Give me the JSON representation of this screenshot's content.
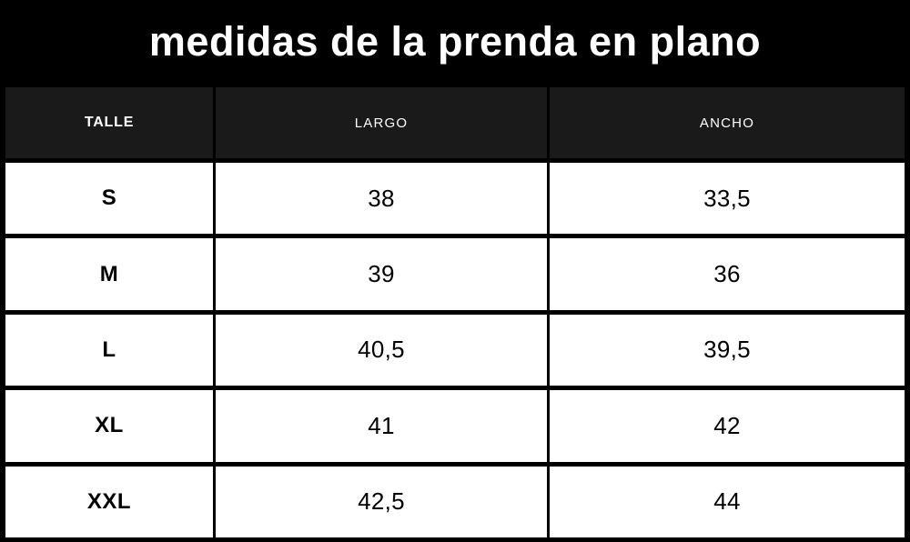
{
  "title": "medidas de la prenda en plano",
  "chart_data": {
    "type": "table",
    "title": "medidas de la prenda en plano",
    "columns": [
      "TALLE",
      "LARGO",
      "ANCHO"
    ],
    "rows": [
      [
        "S",
        "38",
        "33,5"
      ],
      [
        "M",
        "39",
        "36"
      ],
      [
        "L",
        "40,5",
        "39,5"
      ],
      [
        "XL",
        "41",
        "42"
      ],
      [
        "XXL",
        "42,5",
        "44"
      ]
    ]
  },
  "colors": {
    "background": "#000000",
    "title_text": "#ffffff",
    "header_background": "#1a1a1a",
    "header_text": "#ffffff",
    "cell_background": "#ffffff",
    "cell_text": "#000000",
    "border": "#000000"
  }
}
